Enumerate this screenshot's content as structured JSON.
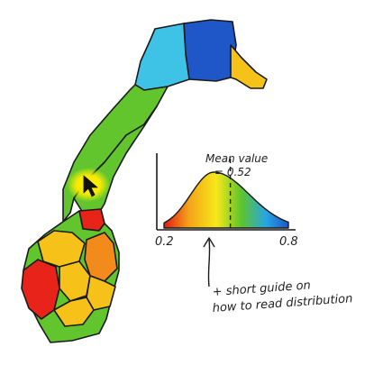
{
  "annotations": {
    "mean_label_line1": "Mean value",
    "mean_label_line2": "= 0.52",
    "guide_line1": "+ short guide on",
    "guide_line2": "how to read distribution"
  },
  "chart_data": {
    "type": "area",
    "title": "",
    "xlabel": "",
    "ylabel": "",
    "x_tick_labels": [
      "0.2",
      "0.8"
    ],
    "xlim": [
      0.2,
      0.8
    ],
    "mean": 0.52,
    "colormap": [
      "#e21b12",
      "#f4a31a",
      "#f6e81a",
      "#5ec52c",
      "#27a5e3",
      "#1e56c8"
    ],
    "grid": false,
    "legend": "none"
  },
  "map": {
    "region_colors": {
      "red": "#e8231a",
      "orange": "#f28a1c",
      "yellow": "#f6c21a",
      "green": "#62c52e",
      "cyan": "#3ec3e6",
      "blue": "#1f57c9"
    },
    "highlight_color": "#fff200"
  }
}
